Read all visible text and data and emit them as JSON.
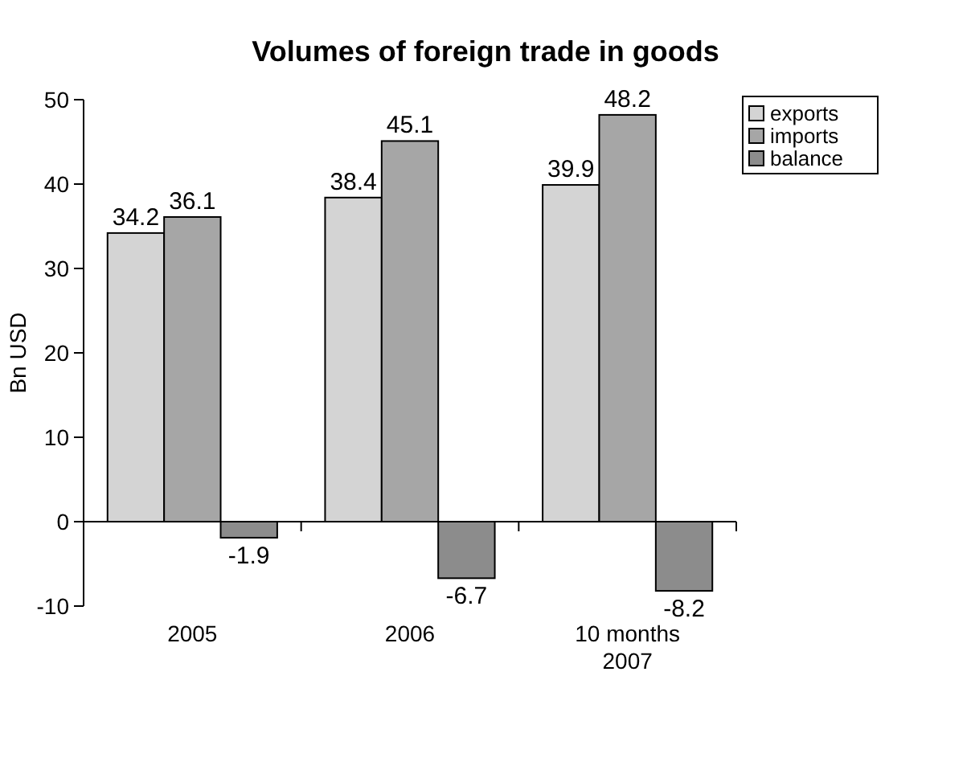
{
  "chart_data": {
    "type": "bar",
    "title": "Volumes of foreign trade in goods",
    "ylabel": "Bn USD",
    "categories": [
      "2005",
      "2006",
      "10 months 2007"
    ],
    "series": [
      {
        "name": "exports",
        "color": "#d4d4d4",
        "values": [
          34.2,
          38.4,
          39.9
        ]
      },
      {
        "name": "imports",
        "color": "#a6a6a6",
        "values": [
          36.1,
          45.1,
          48.2
        ]
      },
      {
        "name": "balance",
        "color": "#8c8c8c",
        "values": [
          -1.9,
          -6.7,
          -8.2
        ]
      }
    ],
    "ylim": [
      -10,
      50
    ],
    "yticks": [
      -10,
      0,
      10,
      20,
      30,
      40,
      50
    ],
    "data_labels": true,
    "legend": "top right"
  }
}
